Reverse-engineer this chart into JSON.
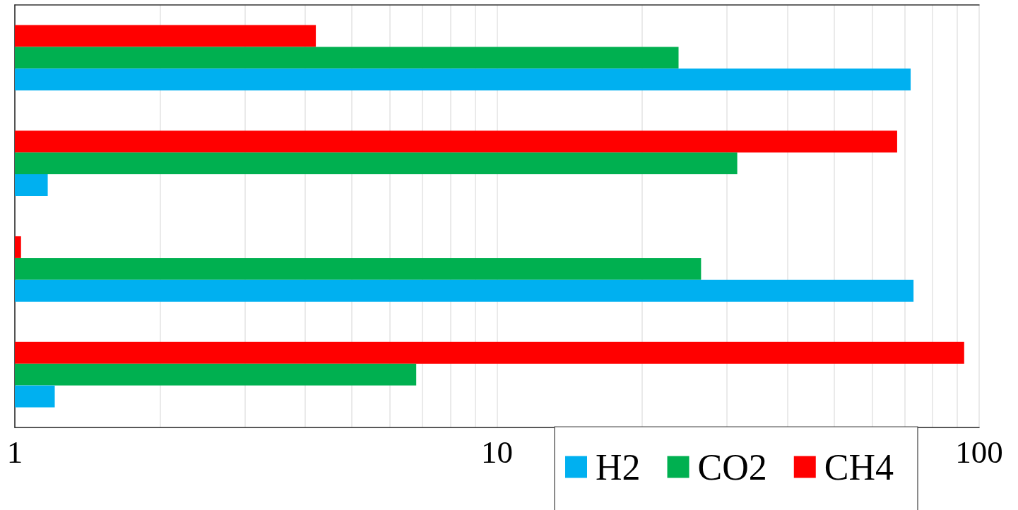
{
  "chart_data": {
    "type": "bar",
    "orientation": "horizontal",
    "categories": [
      null,
      null,
      null,
      null
    ],
    "series": [
      {
        "name": "H2",
        "color": "#00b0f0",
        "values": [
          72.1,
          1.17,
          73.1,
          1.21
        ]
      },
      {
        "name": "CO2",
        "color": "#00b050",
        "values": [
          23.8,
          31.5,
          26.5,
          6.8
        ]
      },
      {
        "name": "CH4",
        "color": "#ff0000",
        "values": [
          4.21,
          67.6,
          1.03,
          93.1
        ]
      }
    ],
    "log": "x",
    "xlim": [
      1,
      100
    ],
    "xticks": [
      1,
      {
        "value": 2,
        "label": null
      },
      {
        "value": 3,
        "label": null
      },
      {
        "value": 4,
        "label": null
      },
      {
        "value": 5,
        "label": null
      },
      {
        "value": 6,
        "label": null
      },
      {
        "value": 7,
        "label": null
      },
      {
        "value": 8,
        "label": null
      },
      {
        "value": 9,
        "label": null
      },
      10,
      {
        "value": 20,
        "label": null
      },
      {
        "value": 30,
        "label": null
      },
      {
        "value": 40,
        "label": null
      },
      {
        "value": 50,
        "label": null
      },
      {
        "value": 60,
        "label": null
      },
      {
        "value": 70,
        "label": null
      },
      {
        "value": 80,
        "label": null
      },
      {
        "value": 90,
        "label": null
      },
      100
    ],
    "grid": "x",
    "legend": "bottom right",
    "tick_labels": "x"
  }
}
